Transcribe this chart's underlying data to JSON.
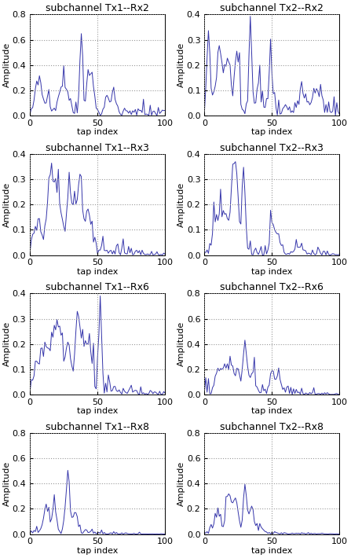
{
  "titles": [
    [
      "subchannel Tx1--Rx2",
      "subchannel Tx2--Rx2"
    ],
    [
      "subchannel Tx1--Rx3",
      "subchannel Tx2--Rx3"
    ],
    [
      "subchannel Tx1--Rx6",
      "subchannel Tx2--Rx6"
    ],
    [
      "subchannel Tx1--Rx8",
      "subchannel Tx2--Rx8"
    ]
  ],
  "ylims": [
    [
      [
        0,
        0.8
      ],
      [
        0,
        0.4
      ]
    ],
    [
      [
        0,
        0.4
      ],
      [
        0,
        0.4
      ]
    ],
    [
      [
        0,
        0.4
      ],
      [
        0,
        0.8
      ]
    ],
    [
      [
        0,
        0.8
      ],
      [
        0,
        0.8
      ]
    ]
  ],
  "yticks": [
    [
      [
        0,
        0.2,
        0.4,
        0.6,
        0.8
      ],
      [
        0,
        0.1,
        0.2,
        0.3,
        0.4
      ]
    ],
    [
      [
        0,
        0.1,
        0.2,
        0.3,
        0.4
      ],
      [
        0,
        0.1,
        0.2,
        0.3,
        0.4
      ]
    ],
    [
      [
        0,
        0.1,
        0.2,
        0.3,
        0.4
      ],
      [
        0,
        0.2,
        0.4,
        0.6,
        0.8
      ]
    ],
    [
      [
        0,
        0.2,
        0.4,
        0.6,
        0.8
      ],
      [
        0,
        0.2,
        0.4,
        0.6,
        0.8
      ]
    ]
  ],
  "line_color": "#3535aa",
  "xlabel": "tap index",
  "ylabel": "Amplitude",
  "xlim": [
    0,
    100
  ],
  "xticks": [
    0,
    50,
    100
  ],
  "figsize": [
    4.47,
    7.1
  ],
  "dpi": 100,
  "title_fontsize": 9,
  "label_fontsize": 8,
  "tick_fontsize": 8
}
